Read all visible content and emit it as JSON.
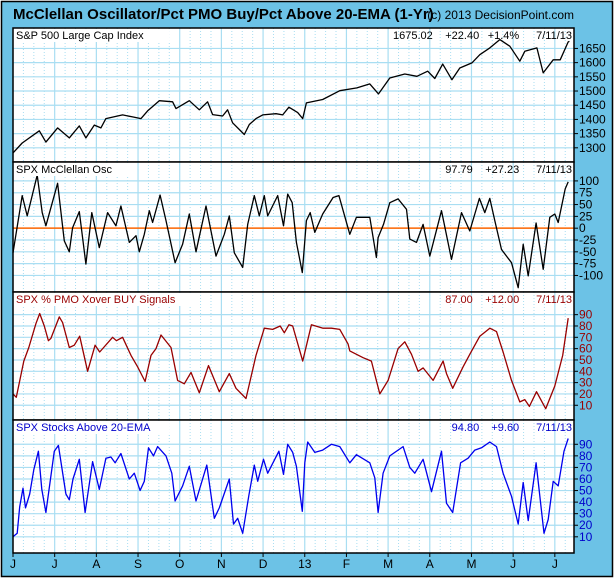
{
  "header": {
    "title": "McClellan Oscillator/Pct PMO Buy/Pct Above 20-EMA (1-Yr)",
    "copyright": "(c) 2013 DecisionPoint.com"
  },
  "colors": {
    "background": "#6CC2E6",
    "grid": "#A9DEF2",
    "zero_line": "#FF6600",
    "price": "#000000",
    "mcclellan": "#000000",
    "pmo": "#990000",
    "ema": "#0000EE"
  },
  "x_axis": {
    "unit": "months since Jun 2012",
    "xlim": [
      0,
      13.46
    ],
    "ticks": [
      0,
      1,
      2,
      3,
      4,
      5,
      6,
      7,
      8,
      9,
      10,
      11,
      12,
      13
    ],
    "labels": [
      "J",
      "J",
      "A",
      "S",
      "O",
      "N",
      "D",
      "13",
      "F",
      "M",
      "A",
      "M",
      "J",
      "J"
    ]
  },
  "chart_data": [
    {
      "type": "line",
      "title": "S&P 500 Large Cap Index",
      "readout": {
        "value": "1675.02",
        "change": "+22.40",
        "pct": "+1.4%",
        "date": "7/11/13"
      },
      "ylim": [
        1250,
        1722
      ],
      "yticks": [
        1300,
        1350,
        1400,
        1450,
        1500,
        1550,
        1600,
        1650
      ],
      "color_key": "price",
      "points": [
        [
          0,
          1282
        ],
        [
          0.22,
          1317
        ],
        [
          0.63,
          1360
        ],
        [
          0.79,
          1320
        ],
        [
          1.07,
          1370
        ],
        [
          1.35,
          1335
        ],
        [
          1.59,
          1377
        ],
        [
          1.75,
          1335
        ],
        [
          1.95,
          1380
        ],
        [
          2.11,
          1370
        ],
        [
          2.23,
          1403
        ],
        [
          2.63,
          1416
        ],
        [
          2.87,
          1409
        ],
        [
          3.07,
          1403
        ],
        [
          3.23,
          1430
        ],
        [
          3.51,
          1466
        ],
        [
          3.83,
          1462
        ],
        [
          3.91,
          1438
        ],
        [
          4.23,
          1466
        ],
        [
          4.47,
          1434
        ],
        [
          4.67,
          1462
        ],
        [
          4.79,
          1417
        ],
        [
          5.03,
          1412
        ],
        [
          5.15,
          1434
        ],
        [
          5.27,
          1388
        ],
        [
          5.55,
          1347
        ],
        [
          5.67,
          1382
        ],
        [
          5.83,
          1403
        ],
        [
          5.99,
          1416
        ],
        [
          6.31,
          1420
        ],
        [
          6.47,
          1416
        ],
        [
          6.62,
          1443
        ],
        [
          6.83,
          1424
        ],
        [
          6.95,
          1403
        ],
        [
          7.04,
          1458
        ],
        [
          7.43,
          1470
        ],
        [
          7.84,
          1501
        ],
        [
          8.25,
          1511
        ],
        [
          8.56,
          1525
        ],
        [
          8.77,
          1490
        ],
        [
          9.04,
          1546
        ],
        [
          9.4,
          1560
        ],
        [
          9.69,
          1552
        ],
        [
          9.95,
          1570
        ],
        [
          10.12,
          1544
        ],
        [
          10.31,
          1595
        ],
        [
          10.53,
          1540
        ],
        [
          10.72,
          1581
        ],
        [
          11.01,
          1599
        ],
        [
          11.2,
          1628
        ],
        [
          11.44,
          1652
        ],
        [
          11.68,
          1681
        ],
        [
          11.92,
          1658
        ],
        [
          12.16,
          1605
        ],
        [
          12.28,
          1640
        ],
        [
          12.57,
          1652
        ],
        [
          12.72,
          1564
        ],
        [
          12.96,
          1610
        ],
        [
          13.13,
          1610
        ],
        [
          13.32,
          1673
        ],
        [
          13.35,
          1675
        ]
      ]
    },
    {
      "type": "line",
      "title": "SPX McClellan Osc",
      "readout": {
        "value": "97.79",
        "change": "+27.23",
        "date": "7/11/13"
      },
      "ylim": [
        -135,
        140
      ],
      "yticks": [
        -100,
        -75,
        -50,
        -25,
        0,
        25,
        50,
        75,
        100
      ],
      "zero_line": 0,
      "color_key": "mcclellan",
      "points": [
        [
          0,
          -52
        ],
        [
          0.22,
          69
        ],
        [
          0.34,
          26
        ],
        [
          0.58,
          112
        ],
        [
          0.7,
          33
        ],
        [
          0.79,
          5
        ],
        [
          1.07,
          95
        ],
        [
          1.23,
          -27
        ],
        [
          1.35,
          -50
        ],
        [
          1.43,
          1
        ],
        [
          1.59,
          35
        ],
        [
          1.75,
          -76
        ],
        [
          1.89,
          33
        ],
        [
          2.07,
          -41
        ],
        [
          2.27,
          33
        ],
        [
          2.47,
          5
        ],
        [
          2.59,
          47
        ],
        [
          2.79,
          -30
        ],
        [
          2.95,
          -16
        ],
        [
          3.03,
          -50
        ],
        [
          3.15,
          -13
        ],
        [
          3.27,
          37
        ],
        [
          3.35,
          12
        ],
        [
          3.53,
          70
        ],
        [
          3.67,
          16
        ],
        [
          3.89,
          -73
        ],
        [
          4.07,
          -34
        ],
        [
          4.23,
          30
        ],
        [
          4.39,
          -50
        ],
        [
          4.63,
          47
        ],
        [
          4.87,
          -59
        ],
        [
          5.07,
          -13
        ],
        [
          5.19,
          26
        ],
        [
          5.31,
          -52
        ],
        [
          5.51,
          -83
        ],
        [
          5.63,
          8
        ],
        [
          5.79,
          69
        ],
        [
          5.91,
          26
        ],
        [
          6.03,
          69
        ],
        [
          6.11,
          26
        ],
        [
          6.35,
          69
        ],
        [
          6.49,
          5
        ],
        [
          6.59,
          72
        ],
        [
          6.7,
          54
        ],
        [
          6.8,
          -30
        ],
        [
          6.94,
          -94
        ],
        [
          7.04,
          16
        ],
        [
          7.13,
          33
        ],
        [
          7.24,
          -9
        ],
        [
          7.43,
          30
        ],
        [
          7.68,
          65
        ],
        [
          7.82,
          69
        ],
        [
          8.08,
          -13
        ],
        [
          8.24,
          23
        ],
        [
          8.56,
          23
        ],
        [
          8.72,
          -62
        ],
        [
          8.76,
          -20
        ],
        [
          8.89,
          8
        ],
        [
          9.04,
          54
        ],
        [
          9.24,
          62
        ],
        [
          9.44,
          40
        ],
        [
          9.52,
          -23
        ],
        [
          9.68,
          -30
        ],
        [
          9.84,
          8
        ],
        [
          10.0,
          -59
        ],
        [
          10.28,
          37
        ],
        [
          10.52,
          -66
        ],
        [
          10.76,
          33
        ],
        [
          10.96,
          -6
        ],
        [
          11.19,
          63
        ],
        [
          11.32,
          33
        ],
        [
          11.44,
          63
        ],
        [
          11.56,
          16
        ],
        [
          11.72,
          -45
        ],
        [
          11.96,
          -73
        ],
        [
          12.12,
          -126
        ],
        [
          12.24,
          -34
        ],
        [
          12.36,
          -101
        ],
        [
          12.55,
          11
        ],
        [
          12.72,
          -87
        ],
        [
          12.88,
          23
        ],
        [
          13.0,
          30
        ],
        [
          13.08,
          12
        ],
        [
          13.25,
          83
        ],
        [
          13.32,
          98
        ]
      ]
    },
    {
      "type": "line",
      "title": "SPX % PMO Xover BUY Signals",
      "readout": {
        "value": "87.00",
        "change": "+12.00",
        "date": "7/11/13"
      },
      "ylim": [
        -3,
        110
      ],
      "yticks": [
        10,
        20,
        30,
        40,
        50,
        60,
        70,
        80,
        90
      ],
      "color_key": "pmo",
      "points": [
        [
          0,
          20
        ],
        [
          0.08,
          17
        ],
        [
          0.26,
          49
        ],
        [
          0.38,
          61
        ],
        [
          0.55,
          82
        ],
        [
          0.64,
          91
        ],
        [
          0.75,
          80
        ],
        [
          0.85,
          67
        ],
        [
          0.91,
          69
        ],
        [
          1.11,
          88
        ],
        [
          1.19,
          83
        ],
        [
          1.35,
          61
        ],
        [
          1.47,
          63
        ],
        [
          1.6,
          71
        ],
        [
          1.79,
          40
        ],
        [
          1.97,
          63
        ],
        [
          2.08,
          57
        ],
        [
          2.39,
          70
        ],
        [
          2.48,
          67
        ],
        [
          2.63,
          70
        ],
        [
          2.83,
          54
        ],
        [
          2.99,
          44
        ],
        [
          3.17,
          31
        ],
        [
          3.31,
          54
        ],
        [
          3.43,
          60
        ],
        [
          3.55,
          72
        ],
        [
          3.79,
          61
        ],
        [
          3.95,
          32
        ],
        [
          4.11,
          29
        ],
        [
          4.27,
          39
        ],
        [
          4.47,
          21
        ],
        [
          4.69,
          45
        ],
        [
          4.95,
          22
        ],
        [
          5.19,
          38
        ],
        [
          5.35,
          25
        ],
        [
          5.59,
          16
        ],
        [
          5.83,
          54
        ],
        [
          6.03,
          78
        ],
        [
          6.23,
          77
        ],
        [
          6.41,
          80
        ],
        [
          6.51,
          74
        ],
        [
          6.62,
          81
        ],
        [
          6.71,
          80
        ],
        [
          6.95,
          49
        ],
        [
          7.16,
          81
        ],
        [
          7.44,
          78
        ],
        [
          7.64,
          78
        ],
        [
          7.84,
          77
        ],
        [
          8.04,
          64
        ],
        [
          8.08,
          58
        ],
        [
          8.4,
          52
        ],
        [
          8.6,
          49
        ],
        [
          8.8,
          20
        ],
        [
          9.0,
          32
        ],
        [
          9.24,
          60
        ],
        [
          9.4,
          66
        ],
        [
          9.56,
          55
        ],
        [
          9.72,
          40
        ],
        [
          9.84,
          43
        ],
        [
          10.08,
          32
        ],
        [
          10.32,
          49
        ],
        [
          10.4,
          38
        ],
        [
          10.55,
          25
        ],
        [
          10.8,
          44
        ],
        [
          10.96,
          55
        ],
        [
          11.2,
          71
        ],
        [
          11.44,
          78
        ],
        [
          11.6,
          75
        ],
        [
          11.76,
          57
        ],
        [
          11.96,
          32
        ],
        [
          12.16,
          13
        ],
        [
          12.28,
          15
        ],
        [
          12.39,
          9
        ],
        [
          12.56,
          22
        ],
        [
          12.78,
          7
        ],
        [
          13.0,
          27
        ],
        [
          13.19,
          54
        ],
        [
          13.32,
          87
        ]
      ]
    },
    {
      "type": "line",
      "title": "SPX Stocks Above 20-EMA",
      "readout": {
        "value": "94.80",
        "change": "+9.60",
        "date": "7/11/13"
      },
      "ylim": [
        -4,
        111
      ],
      "yticks": [
        10,
        20,
        30,
        40,
        50,
        60,
        70,
        80,
        90
      ],
      "color_key": "ema",
      "points": [
        [
          0,
          10
        ],
        [
          0.1,
          13
        ],
        [
          0.16,
          36
        ],
        [
          0.24,
          52
        ],
        [
          0.3,
          35
        ],
        [
          0.4,
          47
        ],
        [
          0.5,
          68
        ],
        [
          0.61,
          84
        ],
        [
          0.69,
          51
        ],
        [
          0.79,
          31
        ],
        [
          0.99,
          84
        ],
        [
          1.09,
          89
        ],
        [
          1.27,
          47
        ],
        [
          1.35,
          42
        ],
        [
          1.44,
          60
        ],
        [
          1.59,
          77
        ],
        [
          1.73,
          31
        ],
        [
          1.91,
          75
        ],
        [
          2.07,
          51
        ],
        [
          2.23,
          78
        ],
        [
          2.35,
          79
        ],
        [
          2.45,
          74
        ],
        [
          2.59,
          82
        ],
        [
          2.79,
          60
        ],
        [
          2.91,
          65
        ],
        [
          3.05,
          50
        ],
        [
          3.15,
          58
        ],
        [
          3.25,
          87
        ],
        [
          3.37,
          80
        ],
        [
          3.47,
          88
        ],
        [
          3.67,
          80
        ],
        [
          3.81,
          65
        ],
        [
          3.89,
          41
        ],
        [
          4.07,
          54
        ],
        [
          4.23,
          71
        ],
        [
          4.39,
          41
        ],
        [
          4.65,
          72
        ],
        [
          4.83,
          26
        ],
        [
          4.95,
          35
        ],
        [
          5.19,
          60
        ],
        [
          5.29,
          21
        ],
        [
          5.39,
          26
        ],
        [
          5.51,
          13
        ],
        [
          5.66,
          46
        ],
        [
          5.79,
          72
        ],
        [
          5.87,
          58
        ],
        [
          6.01,
          77
        ],
        [
          6.11,
          65
        ],
        [
          6.38,
          84
        ],
        [
          6.49,
          64
        ],
        [
          6.59,
          90
        ],
        [
          6.71,
          83
        ],
        [
          6.8,
          71
        ],
        [
          6.94,
          32
        ],
        [
          7.0,
          74
        ],
        [
          7.07,
          92
        ],
        [
          7.24,
          83
        ],
        [
          7.43,
          85
        ],
        [
          7.64,
          90
        ],
        [
          7.84,
          88
        ],
        [
          8.08,
          74
        ],
        [
          8.24,
          81
        ],
        [
          8.56,
          74
        ],
        [
          8.68,
          61
        ],
        [
          8.76,
          31
        ],
        [
          8.88,
          65
        ],
        [
          9.04,
          80
        ],
        [
          9.36,
          88
        ],
        [
          9.52,
          70
        ],
        [
          9.64,
          65
        ],
        [
          9.84,
          77
        ],
        [
          10.04,
          49
        ],
        [
          10.28,
          84
        ],
        [
          10.4,
          39
        ],
        [
          10.55,
          31
        ],
        [
          10.74,
          74
        ],
        [
          10.92,
          78
        ],
        [
          11.08,
          85
        ],
        [
          11.24,
          87
        ],
        [
          11.44,
          92
        ],
        [
          11.6,
          88
        ],
        [
          11.76,
          65
        ],
        [
          11.96,
          45
        ],
        [
          12.12,
          21
        ],
        [
          12.24,
          57
        ],
        [
          12.36,
          24
        ],
        [
          12.55,
          74
        ],
        [
          12.74,
          13
        ],
        [
          12.84,
          25
        ],
        [
          12.96,
          58
        ],
        [
          13.08,
          54
        ],
        [
          13.22,
          84
        ],
        [
          13.32,
          95
        ]
      ]
    }
  ]
}
